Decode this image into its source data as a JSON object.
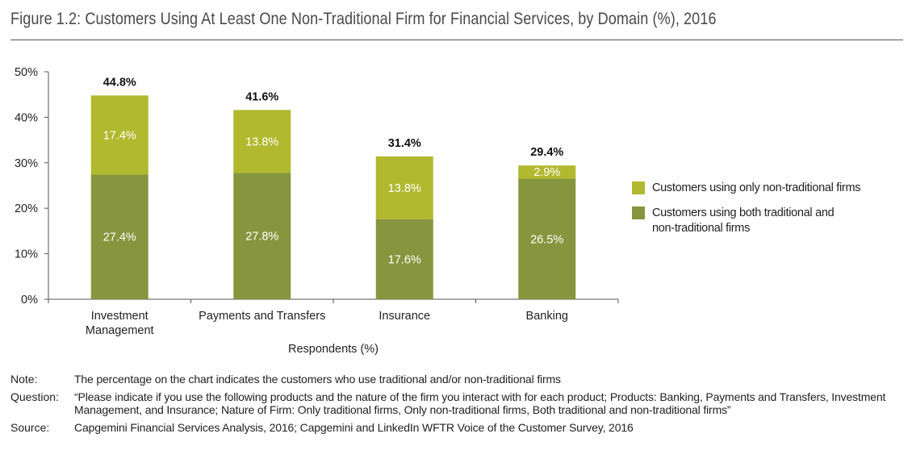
{
  "title": "Figure 1.2: Customers Using At Least One Non-Traditional Firm for Financial Services, by Domain (%), 2016",
  "chart_data": {
    "type": "bar",
    "stacked": true,
    "title": "Figure 1.2: Customers Using At Least One Non-Traditional Firm for Financial Services, by Domain (%), 2016",
    "xlabel": "Respondents (%)",
    "ylabel": "",
    "ylim": [
      0,
      50
    ],
    "yticks": [
      "0%",
      "10%",
      "20%",
      "30%",
      "40%",
      "50%"
    ],
    "ytick_values": [
      0,
      10,
      20,
      30,
      40,
      50
    ],
    "grid": false,
    "legend_position": "right",
    "categories": [
      "Investment Management",
      "Payments and Transfers",
      "Insurance",
      "Banking"
    ],
    "category_labels": [
      [
        "Investment",
        "Management"
      ],
      [
        "Payments and Transfers"
      ],
      [
        "Insurance"
      ],
      [
        "Banking"
      ]
    ],
    "series": [
      {
        "name": "Customers using both traditional and non-traditional firms",
        "legend_lines": [
          "Customers using both traditional and",
          "non-traditional firms"
        ],
        "color": "#87963e",
        "values": [
          27.4,
          27.8,
          17.6,
          26.5
        ],
        "labels": [
          "27.4%",
          "27.8%",
          "17.6%",
          "26.5%"
        ]
      },
      {
        "name": "Customers using only non-traditional firms",
        "legend_lines": [
          "Customers using only non-traditional firms"
        ],
        "color": "#b1b92e",
        "values": [
          17.4,
          13.8,
          13.8,
          2.9
        ],
        "labels": [
          "17.4%",
          "13.8%",
          "13.8%",
          "2.9%"
        ]
      }
    ],
    "totals": [
      44.8,
      41.6,
      31.4,
      29.4
    ],
    "total_labels": [
      "44.8%",
      "41.6%",
      "31.4%",
      "29.4%"
    ]
  },
  "legend": {
    "items": [
      {
        "label": "Customers using only non-traditional firms",
        "color": "#b1b92e"
      },
      {
        "label": "Customers using both traditional and non-traditional firms",
        "color": "#87963e"
      }
    ]
  },
  "notes": [
    {
      "key": "Note:",
      "text": "The percentage on the chart indicates the customers who use traditional and/or non-traditional firms"
    },
    {
      "key": "Question:",
      "text": "“Please indicate if you use the following products and the nature of the firm you interact with for each product; Products: Banking, Payments and Transfers, Investment Management, and Insurance; Nature of Firm: Only traditional firms, Only non-traditional firms, Both traditional and non-traditional firms”"
    },
    {
      "key": "Source:",
      "text": "Capgemini Financial Services Analysis, 2016; Capgemini and LinkedIn WFTR Voice of the Customer Survey, 2016"
    }
  ]
}
